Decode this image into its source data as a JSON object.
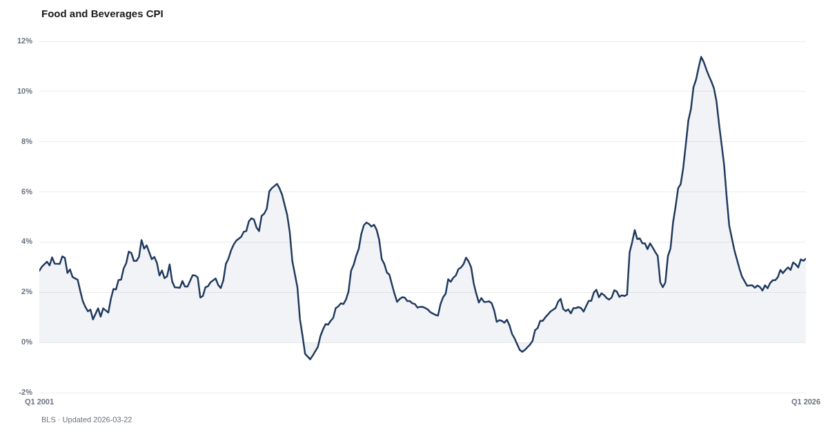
{
  "chart_data": {
    "type": "area",
    "title": "Food and Beverages CPI",
    "annotations": [
      "BLS · Updated 2026-03-22"
    ],
    "color": "#1f3a5e",
    "marker": "none",
    "line_style": "solid",
    "grid": "y",
    "xlim": [
      "2001-01",
      "2026-01"
    ],
    "xticks": [
      {
        "value": "2001-01",
        "label": "Q1 2001"
      },
      {
        "value": "2026-01",
        "label": "Q1 2026"
      }
    ],
    "ylim": [
      -2,
      12
    ],
    "yticks": [
      {
        "value": -2,
        "label": "-2%"
      },
      {
        "value": 0,
        "label": "0%"
      },
      {
        "value": 2,
        "label": "2%"
      },
      {
        "value": 4,
        "label": "4%"
      },
      {
        "value": 6,
        "label": "6%"
      },
      {
        "value": 8,
        "label": "8%"
      },
      {
        "value": 10,
        "label": "10%"
      },
      {
        "value": 12,
        "label": "12%"
      }
    ],
    "x": [
      "2001-01",
      "2001-02",
      "2001-04",
      "2001-05",
      "2001-06",
      "2001-07",
      "2001-09",
      "2001-10",
      "2001-11",
      "2001-12",
      "2002-01",
      "2002-02",
      "2002-04",
      "2002-05",
      "2002-06",
      "2002-07",
      "2002-08",
      "2002-09",
      "2002-10",
      "2002-12",
      "2003-01",
      "2003-02",
      "2003-04",
      "2003-05",
      "2003-06",
      "2003-07",
      "2003-08",
      "2003-09",
      "2003-10",
      "2003-11",
      "2003-12",
      "2004-01",
      "2004-02",
      "2004-03",
      "2004-04",
      "2004-05",
      "2004-06",
      "2004-07",
      "2004-09",
      "2004-10",
      "2004-11",
      "2004-12",
      "2005-01",
      "2005-02",
      "2005-03",
      "2005-04",
      "2005-05",
      "2005-06",
      "2005-08",
      "2005-09",
      "2005-10",
      "2005-11",
      "2006-01",
      "2006-02",
      "2006-03",
      "2006-04",
      "2006-05",
      "2006-06",
      "2006-07",
      "2006-08",
      "2006-10",
      "2006-11",
      "2006-12",
      "2007-01",
      "2007-02",
      "2007-03",
      "2007-04",
      "2007-05",
      "2007-06",
      "2007-08",
      "2007-09",
      "2007-10",
      "2007-11",
      "2007-12",
      "2008-01",
      "2008-02",
      "2008-03",
      "2008-04",
      "2008-05",
      "2008-06",
      "2008-07",
      "2008-08",
      "2008-10",
      "2008-11",
      "2008-12",
      "2009-02",
      "2009-03",
      "2009-04",
      "2009-06",
      "2009-07",
      "2009-08",
      "2009-09",
      "2009-11",
      "2009-12",
      "2010-01",
      "2010-02",
      "2010-03",
      "2010-04",
      "2010-05",
      "2010-06",
      "2010-07",
      "2010-08",
      "2010-09",
      "2010-10",
      "2010-11",
      "2010-12",
      "2011-01",
      "2011-02",
      "2011-03",
      "2011-04",
      "2011-05",
      "2011-06",
      "2011-07",
      "2011-08",
      "2011-09",
      "2011-10",
      "2011-11",
      "2011-12",
      "2012-01",
      "2012-02",
      "2012-03",
      "2012-04",
      "2012-05",
      "2012-06",
      "2012-07",
      "2012-08",
      "2012-09",
      "2012-10",
      "2012-11",
      "2012-12",
      "2013-01",
      "2013-02",
      "2013-03",
      "2013-04",
      "2013-05",
      "2013-06",
      "2013-07",
      "2013-08",
      "2013-09",
      "2013-10",
      "2013-12",
      "2014-01",
      "2014-02",
      "2014-03",
      "2014-04",
      "2014-05",
      "2014-06",
      "2014-07",
      "2014-08",
      "2014-09",
      "2014-10",
      "2014-11",
      "2014-12",
      "2015-01",
      "2015-02",
      "2015-03",
      "2015-04",
      "2015-05",
      "2015-06",
      "2015-07",
      "2015-08",
      "2015-09",
      "2015-10",
      "2015-11",
      "2015-12",
      "2016-01",
      "2016-02",
      "2016-03",
      "2016-04",
      "2016-05",
      "2016-06",
      "2016-07",
      "2016-08",
      "2016-09",
      "2016-10",
      "2016-11",
      "2016-12",
      "2017-01",
      "2017-02",
      "2017-03",
      "2017-04",
      "2017-05",
      "2017-06",
      "2017-07",
      "2017-08",
      "2017-09",
      "2017-11",
      "2017-12",
      "2018-01",
      "2018-02",
      "2018-03",
      "2018-04",
      "2018-05",
      "2018-06",
      "2018-07",
      "2018-08",
      "2018-09",
      "2018-10",
      "2018-11",
      "2018-12",
      "2019-01",
      "2019-02",
      "2019-03",
      "2019-04",
      "2019-05",
      "2019-06",
      "2019-07",
      "2019-08",
      "2019-09",
      "2019-10",
      "2019-11",
      "2019-12",
      "2020-01",
      "2020-02",
      "2020-03",
      "2020-04",
      "2020-05",
      "2020-06",
      "2020-07",
      "2020-08",
      "2020-09",
      "2020-10",
      "2020-11",
      "2020-12",
      "2021-01",
      "2021-02",
      "2021-03",
      "2021-04",
      "2021-05",
      "2021-06",
      "2021-07",
      "2021-08",
      "2021-09",
      "2021-10",
      "2021-11",
      "2021-12",
      "2022-01",
      "2022-02",
      "2022-03",
      "2022-04",
      "2022-05",
      "2022-06",
      "2022-07",
      "2022-08",
      "2022-09",
      "2022-10",
      "2022-11",
      "2022-12",
      "2023-01",
      "2023-02",
      "2023-03",
      "2023-04",
      "2023-05",
      "2023-06",
      "2023-07",
      "2023-09",
      "2023-11",
      "2023-12",
      "2024-02",
      "2024-04",
      "2024-05",
      "2024-06",
      "2024-07",
      "2024-08",
      "2024-09",
      "2024-10",
      "2024-11",
      "2024-12",
      "2025-01",
      "2025-02",
      "2025-03",
      "2025-04",
      "2025-05",
      "2025-06",
      "2025-07",
      "2025-08",
      "2025-09",
      "2025-10",
      "2025-11",
      "2025-12",
      "2026-01"
    ],
    "values": [
      2.86,
      3.02,
      3.22,
      3.07,
      3.39,
      3.14,
      3.13,
      3.43,
      3.37,
      2.77,
      2.91,
      2.61,
      2.5,
      2.06,
      1.65,
      1.42,
      1.24,
      1.31,
      0.92,
      1.36,
      1.03,
      1.36,
      1.19,
      1.74,
      2.13,
      2.11,
      2.49,
      2.5,
      2.95,
      3.16,
      3.62,
      3.57,
      3.25,
      3.25,
      3.41,
      4.08,
      3.74,
      3.87,
      3.32,
      3.41,
      3.18,
      2.67,
      2.87,
      2.56,
      2.64,
      3.11,
      2.43,
      2.2,
      2.18,
      2.45,
      2.23,
      2.23,
      2.68,
      2.67,
      2.59,
      1.79,
      1.85,
      2.2,
      2.24,
      2.4,
      2.55,
      2.29,
      2.17,
      2.47,
      3.13,
      3.34,
      3.66,
      3.89,
      4.05,
      4.21,
      4.41,
      4.44,
      4.83,
      4.95,
      4.9,
      4.58,
      4.44,
      5.05,
      5.13,
      5.33,
      6.02,
      6.15,
      6.32,
      6.14,
      5.89,
      5.08,
      4.4,
      3.25,
      2.2,
      0.92,
      0.27,
      -0.45,
      -0.67,
      -0.52,
      -0.35,
      -0.18,
      0.25,
      0.52,
      0.73,
      0.71,
      0.86,
      0.98,
      1.37,
      1.44,
      1.56,
      1.53,
      1.71,
      2.03,
      2.86,
      3.09,
      3.45,
      3.73,
      4.32,
      4.67,
      4.78,
      4.72,
      4.62,
      4.69,
      4.49,
      4.09,
      3.32,
      3.13,
      2.79,
      2.7,
      2.31,
      1.94,
      1.62,
      1.73,
      1.8,
      1.79,
      1.65,
      1.65,
      1.56,
      1.53,
      1.39,
      1.42,
      1.42,
      1.37,
      1.32,
      1.21,
      1.1,
      1.07,
      1.53,
      1.8,
      1.94,
      2.52,
      2.42,
      2.58,
      2.67,
      2.92,
      2.99,
      3.12,
      3.38,
      3.23,
      2.99,
      2.35,
      1.94,
      1.59,
      1.77,
      1.62,
      1.62,
      1.64,
      1.57,
      1.28,
      0.82,
      0.89,
      0.86,
      0.79,
      0.91,
      0.68,
      0.34,
      0.16,
      -0.07,
      -0.3,
      -0.37,
      -0.3,
      -0.19,
      -0.09,
      0.06,
      0.49,
      0.57,
      0.86,
      0.86,
      1.0,
      1.11,
      1.23,
      1.37,
      1.62,
      1.74,
      1.34,
      1.25,
      1.32,
      1.16,
      1.37,
      1.37,
      1.41,
      1.37,
      1.23,
      1.45,
      1.66,
      1.66,
      1.99,
      2.1,
      1.8,
      1.96,
      1.89,
      1.77,
      1.71,
      1.8,
      2.08,
      2.03,
      1.82,
      1.88,
      1.85,
      1.91,
      3.59,
      4.0,
      4.48,
      4.12,
      4.15,
      3.95,
      3.95,
      3.72,
      3.95,
      3.79,
      3.61,
      3.45,
      2.4,
      2.2,
      2.4,
      3.45,
      3.74,
      4.78,
      5.42,
      6.15,
      6.31,
      6.97,
      7.89,
      8.85,
      9.3,
      10.17,
      10.47,
      10.95,
      11.38,
      11.18,
      10.89,
      10.63,
      10.4,
      10.13,
      9.61,
      8.71,
      7.89,
      7.06,
      5.78,
      4.64,
      3.68,
      2.94,
      2.62,
      2.26,
      2.28,
      2.18,
      2.27,
      2.21,
      2.07,
      2.28,
      2.16,
      2.37,
      2.48,
      2.48,
      2.6,
      2.89,
      2.76,
      2.89,
      2.99,
      2.89,
      3.19,
      3.11,
      2.99,
      3.31,
      3.26,
      3.33
    ]
  }
}
